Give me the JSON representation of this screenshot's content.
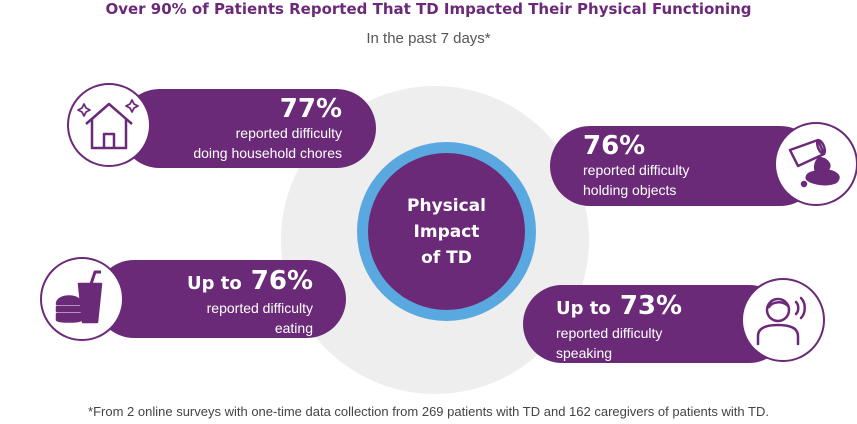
{
  "title": "Over 90% of Patients Reported That TD Impacted Their Physical Functioning",
  "subtitle": "In the past 7 days*",
  "center": {
    "label": "Physical\nImpact\nof TD"
  },
  "stats": [
    {
      "prefix": "",
      "value": "77%",
      "line1": "reported difficulty",
      "line2": "doing household chores",
      "icon": "house-icon"
    },
    {
      "prefix": "",
      "value": "76%",
      "line1": "reported difficulty",
      "line2": "holding objects",
      "icon": "spilled-cup-icon"
    },
    {
      "prefix": "Up to",
      "value": "76%",
      "line1": "reported difficulty",
      "line2": "eating",
      "icon": "food-icon"
    },
    {
      "prefix": "Up to",
      "value": "73%",
      "line1": "reported difficulty",
      "line2": "speaking",
      "icon": "speaking-person-icon"
    }
  ],
  "footnote": "*From 2 online surveys with one-time data collection from 269 patients with TD and 162 caregivers of patients with TD.",
  "colors": {
    "purple": "#6b2a78",
    "ring": "#5aa8e0",
    "background_circle": "#eeeeee"
  }
}
